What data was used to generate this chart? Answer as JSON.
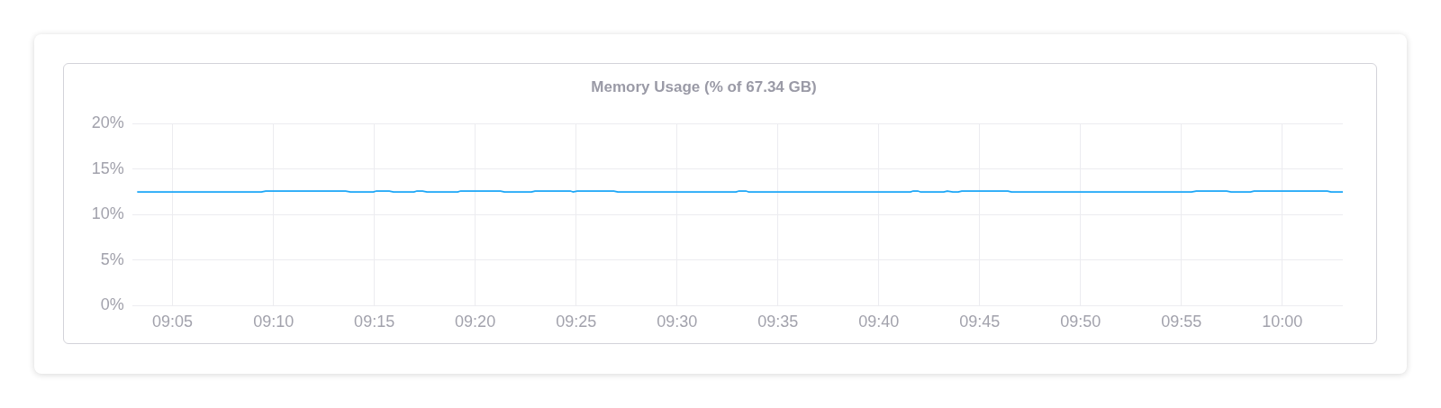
{
  "chart_data": {
    "type": "line",
    "title": "Memory Usage (% of 67.34 GB)",
    "x": [
      9.0545,
      9.1567,
      9.1603,
      9.2262,
      9.2303,
      9.2492,
      9.2518,
      9.2623,
      9.2658,
      9.2827,
      9.2853,
      9.2898,
      9.2935,
      9.3188,
      9.3213,
      9.3542,
      9.3575,
      9.3798,
      9.3828,
      9.4118,
      9.414,
      9.4177,
      9.4478,
      9.4512,
      9.5487,
      9.5513,
      9.5568,
      9.559,
      9.6928,
      9.6952,
      9.6988,
      9.701,
      9.7203,
      9.7233,
      9.7278,
      9.7323,
      9.7353,
      9.7733,
      9.7763,
      9.925,
      9.929,
      9.954,
      9.9577,
      9.9737,
      9.9767,
      10.0372,
      10.0402,
      10.05
    ],
    "series": [
      {
        "color": "#1ba6f7",
        "values": [
          12.5,
          12.5,
          12.6,
          12.6,
          12.5,
          12.5,
          12.6,
          12.6,
          12.5,
          12.5,
          12.6,
          12.6,
          12.5,
          12.5,
          12.6,
          12.6,
          12.5,
          12.5,
          12.6,
          12.6,
          12.5,
          12.6,
          12.6,
          12.5,
          12.5,
          12.6,
          12.6,
          12.5,
          12.5,
          12.6,
          12.6,
          12.5,
          12.5,
          12.6,
          12.5,
          12.5,
          12.6,
          12.6,
          12.5,
          12.5,
          12.6,
          12.6,
          12.5,
          12.5,
          12.6,
          12.6,
          12.5,
          12.5
        ]
      }
    ],
    "xlim": [
      9.05,
      10.05
    ],
    "xticks": [
      {
        "value": 9.0833,
        "label": "09:05"
      },
      {
        "value": 9.1667,
        "label": "09:10"
      },
      {
        "value": 9.25,
        "label": "09:15"
      },
      {
        "value": 9.3333,
        "label": "09:20"
      },
      {
        "value": 9.4167,
        "label": "09:25"
      },
      {
        "value": 9.5,
        "label": "09:30"
      },
      {
        "value": 9.5833,
        "label": "09:35"
      },
      {
        "value": 9.6667,
        "label": "09:40"
      },
      {
        "value": 9.75,
        "label": "09:45"
      },
      {
        "value": 9.8333,
        "label": "09:50"
      },
      {
        "value": 9.9167,
        "label": "09:55"
      },
      {
        "value": 10.0,
        "label": "10:00"
      }
    ],
    "ylim": [
      0,
      20
    ],
    "yticks": [
      {
        "value": 0,
        "label": "0%"
      },
      {
        "value": 5,
        "label": "5%"
      },
      {
        "value": 10,
        "label": "10%"
      },
      {
        "value": 15,
        "label": "15%"
      },
      {
        "value": 20,
        "label": "20%"
      }
    ],
    "grid": true,
    "marker": "none",
    "line_style": "solid"
  }
}
